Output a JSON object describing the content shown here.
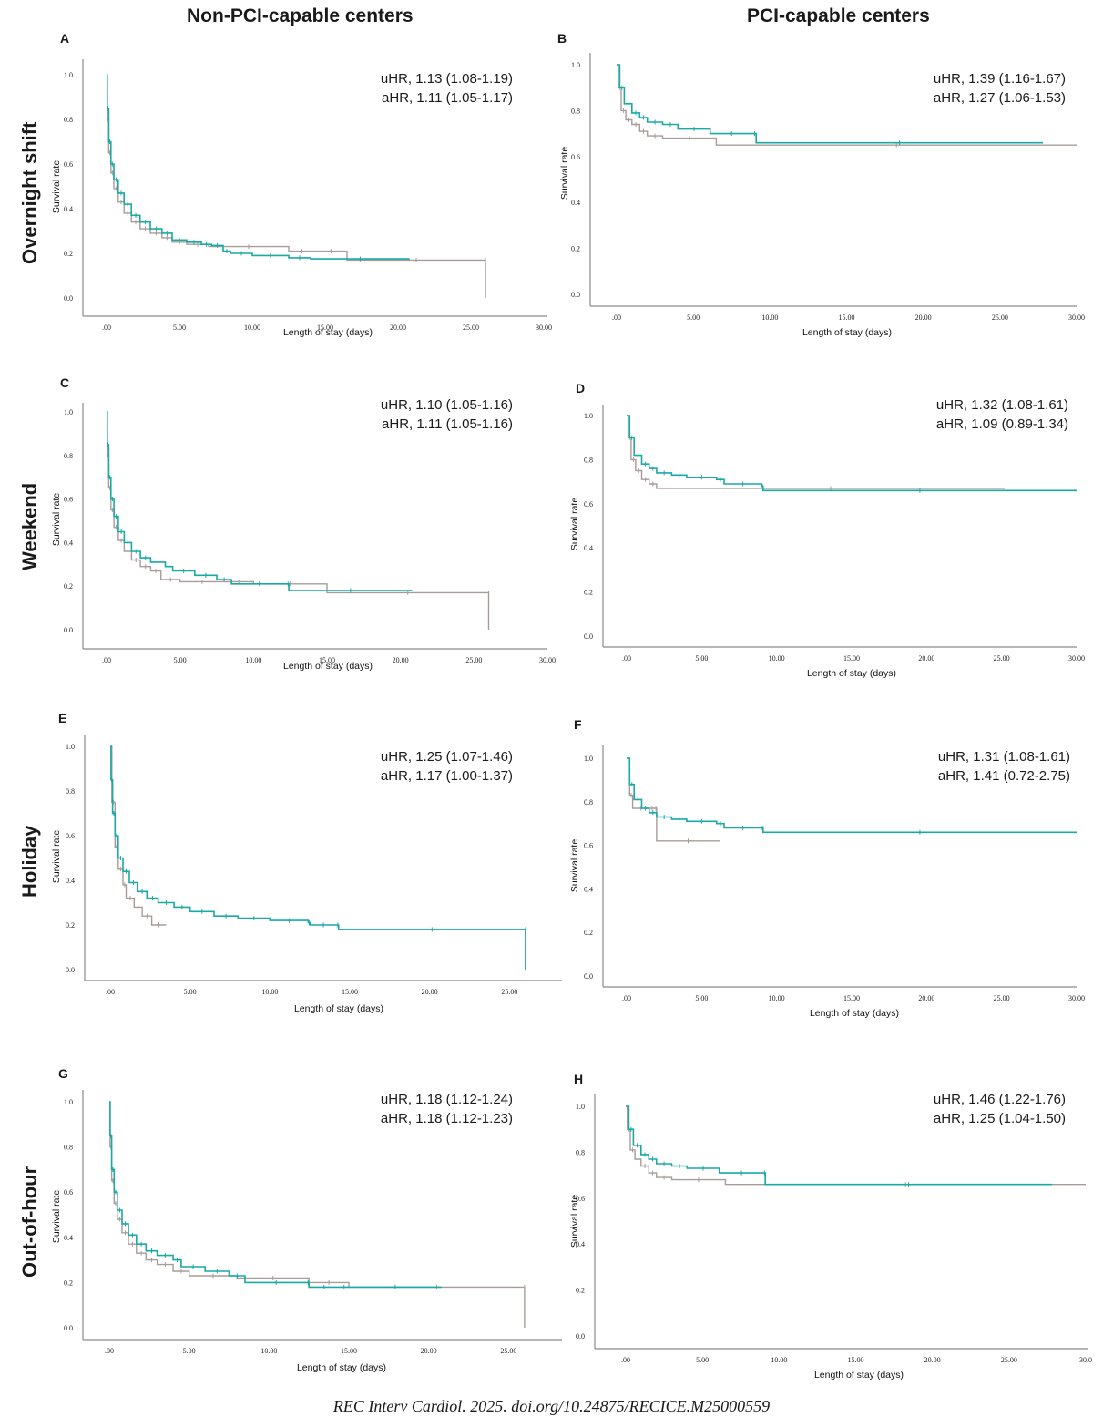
{
  "column_titles": [
    "Non-PCI-capable centers",
    "PCI-capable centers"
  ],
  "row_titles": [
    "Overnight shift",
    "Weekend",
    "Holiday",
    "Out-of-hour"
  ],
  "citation": "REC Interv Cardiol. 2025. doi.org/10.24875/RECICE.M25000559",
  "colors": {
    "series_exposed": "#1aa9a5",
    "series_reference": "#a89c9a",
    "axis": "#8a8a8a"
  },
  "chart_data": [
    {
      "panel": "A",
      "type": "line",
      "subtype": "kaplan-meier-step",
      "row": "Overnight shift",
      "column": "Non-PCI-capable centers",
      "xlabel": "Length of stay (days)",
      "ylabel": "Survival rate",
      "xlim": [
        0,
        30
      ],
      "ylim": [
        0,
        1
      ],
      "xticks": [
        ".00",
        "5.00",
        "10.00",
        "15.00",
        "20.00",
        "25.00",
        "30.00"
      ],
      "yticks": [
        "0.0",
        "0.2",
        "0.4",
        "0.6",
        "0.8",
        "1.0"
      ],
      "annotations": [
        "uHR, 1.13 (1.08-1.19)",
        "aHR, 1.11 (1.05-1.17)"
      ],
      "series": [
        {
          "name": "teal",
          "color": "#1aa9a5",
          "x": [
            0,
            0.05,
            0.15,
            0.3,
            0.5,
            0.8,
            1.2,
            1.7,
            2.3,
            3,
            3.8,
            4.5,
            5.5,
            6.5,
            7.2,
            8,
            8.5,
            10,
            12.5,
            14,
            20.8
          ],
          "y": [
            1.0,
            0.85,
            0.7,
            0.6,
            0.53,
            0.47,
            0.42,
            0.37,
            0.34,
            0.31,
            0.29,
            0.26,
            0.25,
            0.24,
            0.235,
            0.21,
            0.2,
            0.19,
            0.18,
            0.175,
            0.175
          ]
        },
        {
          "name": "gray",
          "color": "#a89c9a",
          "x": [
            0,
            0.05,
            0.15,
            0.3,
            0.5,
            0.8,
            1.2,
            1.7,
            2.3,
            3,
            3.8,
            4.5,
            5.5,
            7,
            12.5,
            14.3,
            16.5,
            26,
            26
          ],
          "y": [
            1.0,
            0.8,
            0.65,
            0.56,
            0.49,
            0.43,
            0.38,
            0.34,
            0.31,
            0.29,
            0.27,
            0.25,
            0.24,
            0.23,
            0.21,
            0.21,
            0.17,
            0.17,
            0.0
          ]
        }
      ]
    },
    {
      "panel": "B",
      "type": "line",
      "subtype": "kaplan-meier-step",
      "row": "Overnight shift",
      "column": "PCI-capable centers",
      "xlabel": "Length of stay (days)",
      "ylabel": "Survival rate",
      "xlim": [
        0,
        30
      ],
      "ylim": [
        0,
        1
      ],
      "xticks": [
        ".00",
        "5.00",
        "10.00",
        "15.00",
        "20.00",
        "25.00",
        "30.00"
      ],
      "yticks": [
        "0.0",
        "0.2",
        "0.4",
        "0.6",
        "0.8",
        "1.0"
      ],
      "annotations": [
        "uHR, 1.39 (1.16-1.67)",
        "aHR, 1.27 (1.06-1.53)"
      ],
      "series": [
        {
          "name": "teal",
          "color": "#1aa9a5",
          "x": [
            0,
            0.2,
            0.5,
            1,
            1.5,
            2,
            3,
            4,
            6.1,
            8.9,
            9.1,
            27.8
          ],
          "y": [
            1.0,
            0.9,
            0.83,
            0.79,
            0.77,
            0.75,
            0.74,
            0.72,
            0.7,
            0.7,
            0.66,
            0.66
          ]
        },
        {
          "name": "gray",
          "color": "#a89c9a",
          "x": [
            0,
            0.1,
            0.3,
            0.6,
            1,
            1.5,
            2,
            3,
            6.5,
            30
          ],
          "y": [
            1.0,
            0.9,
            0.8,
            0.76,
            0.74,
            0.71,
            0.69,
            0.68,
            0.65,
            0.65
          ]
        }
      ]
    },
    {
      "panel": "C",
      "type": "line",
      "subtype": "kaplan-meier-step",
      "row": "Weekend",
      "column": "Non-PCI-capable centers",
      "xlabel": "Length of stay (days)",
      "ylabel": "Survival rate",
      "xlim": [
        0,
        30
      ],
      "ylim": [
        0,
        1
      ],
      "xticks": [
        ".00",
        "5.00",
        "10.00",
        "15.00",
        "20.00",
        "25.00",
        "30.00"
      ],
      "yticks": [
        "0.0",
        "0.2",
        "0.4",
        "0.6",
        "0.8",
        "1.0"
      ],
      "annotations": [
        "uHR, 1.10 (1.05-1.16)",
        "aHR, 1.11 (1.05-1.16)"
      ],
      "series": [
        {
          "name": "teal",
          "color": "#1aa9a5",
          "x": [
            0,
            0.05,
            0.15,
            0.3,
            0.5,
            0.8,
            1.2,
            1.7,
            2.3,
            3,
            4,
            4.5,
            6,
            7.5,
            8.5,
            12.3,
            12.4,
            20.8
          ],
          "y": [
            1.0,
            0.85,
            0.7,
            0.6,
            0.52,
            0.45,
            0.4,
            0.36,
            0.33,
            0.31,
            0.29,
            0.27,
            0.25,
            0.23,
            0.21,
            0.21,
            0.18,
            0.18
          ]
        },
        {
          "name": "gray",
          "color": "#a89c9a",
          "x": [
            0,
            0.05,
            0.15,
            0.3,
            0.5,
            0.8,
            1.2,
            1.7,
            2.3,
            3,
            3.7,
            5,
            8,
            10,
            15,
            26,
            26
          ],
          "y": [
            1.0,
            0.8,
            0.65,
            0.55,
            0.47,
            0.41,
            0.36,
            0.32,
            0.29,
            0.27,
            0.23,
            0.22,
            0.22,
            0.21,
            0.17,
            0.17,
            0.0
          ]
        }
      ]
    },
    {
      "panel": "D",
      "type": "line",
      "subtype": "kaplan-meier-step",
      "row": "Weekend",
      "column": "PCI-capable centers",
      "xlabel": "Length of stay (days)",
      "ylabel": "Survival rate",
      "xlim": [
        0,
        30
      ],
      "ylim": [
        0,
        1
      ],
      "xticks": [
        ".00",
        "5.00",
        "10.00",
        "15.00",
        "20.00",
        "25.00",
        "30.00"
      ],
      "yticks": [
        "0.0",
        "0.2",
        "0.4",
        "0.6",
        "0.8",
        "1.0"
      ],
      "annotations": [
        "uHR, 1.32 (1.08-1.61)",
        "aHR, 1.09 (0.89-1.34)"
      ],
      "series": [
        {
          "name": "teal",
          "color": "#1aa9a5",
          "x": [
            0,
            0.2,
            0.5,
            1,
            1.5,
            2,
            3,
            4,
            6,
            6.5,
            9,
            9.1,
            30
          ],
          "y": [
            1.0,
            0.9,
            0.82,
            0.78,
            0.76,
            0.74,
            0.73,
            0.72,
            0.71,
            0.69,
            0.68,
            0.66,
            0.66
          ]
        },
        {
          "name": "gray",
          "color": "#a89c9a",
          "x": [
            0,
            0.1,
            0.3,
            0.6,
            1,
            1.5,
            2,
            25.2
          ],
          "y": [
            1.0,
            0.9,
            0.8,
            0.75,
            0.71,
            0.69,
            0.67,
            0.67
          ]
        }
      ]
    },
    {
      "panel": "E",
      "type": "line",
      "subtype": "kaplan-meier-step",
      "row": "Holiday",
      "column": "Non-PCI-capable centers",
      "xlabel": "Length of stay (days)",
      "ylabel": "Survival rate",
      "xlim": [
        0,
        30
      ],
      "ylim": [
        0,
        1
      ],
      "xticks": [
        ".00",
        "5.00",
        "10.00",
        "15.00",
        "20.00",
        "25.00"
      ],
      "yticks": [
        "0.0",
        "0.2",
        "0.4",
        "0.6",
        "0.8",
        "1.0"
      ],
      "annotations": [
        "uHR, 1.25 (1.07-1.46)",
        "aHR, 1.17 (1.00-1.37)"
      ],
      "series": [
        {
          "name": "teal",
          "color": "#1aa9a5",
          "x": [
            0,
            0.05,
            0.15,
            0.3,
            0.5,
            0.8,
            1.2,
            1.7,
            2.3,
            3,
            4,
            5,
            6.5,
            8,
            10,
            12.4,
            12.5,
            14.2,
            14.3,
            26,
            26
          ],
          "y": [
            1.0,
            0.85,
            0.7,
            0.6,
            0.5,
            0.44,
            0.39,
            0.35,
            0.32,
            0.3,
            0.28,
            0.26,
            0.24,
            0.23,
            0.22,
            0.21,
            0.2,
            0.2,
            0.18,
            0.18,
            0.0
          ]
        },
        {
          "name": "gray",
          "color": "#a89c9a",
          "x": [
            0,
            0.1,
            0.3,
            0.5,
            0.8,
            1,
            1.5,
            2,
            2.6,
            3.5
          ],
          "y": [
            1.0,
            0.75,
            0.55,
            0.45,
            0.38,
            0.32,
            0.28,
            0.24,
            0.2,
            0.2
          ]
        }
      ]
    },
    {
      "panel": "F",
      "type": "line",
      "subtype": "kaplan-meier-step",
      "row": "Holiday",
      "column": "PCI-capable centers",
      "xlabel": "Length of stay (days)",
      "ylabel": "Survival rate",
      "xlim": [
        0,
        30
      ],
      "ylim": [
        0,
        1
      ],
      "xticks": [
        ".00",
        "5.00",
        "10.00",
        "15.00",
        "20.00",
        "25.00",
        "30.00"
      ],
      "yticks": [
        "0.0",
        "0.2",
        "0.4",
        "0.6",
        "0.8",
        "1.0"
      ],
      "annotations": [
        "uHR, 1.31 (1.08-1.61)",
        "aHR, 1.41 (0.72-2.75)"
      ],
      "series": [
        {
          "name": "teal",
          "color": "#1aa9a5",
          "x": [
            0,
            0.2,
            0.5,
            1,
            1.5,
            2,
            3,
            4,
            6,
            6.5,
            9,
            9.1,
            30
          ],
          "y": [
            1.0,
            0.88,
            0.81,
            0.77,
            0.75,
            0.73,
            0.72,
            0.71,
            0.7,
            0.68,
            0.68,
            0.66,
            0.66
          ]
        },
        {
          "name": "gray",
          "color": "#a89c9a",
          "x": [
            0,
            0.2,
            0.4,
            1.5,
            1.9,
            2.0,
            6.2
          ],
          "y": [
            1.0,
            0.83,
            0.77,
            0.77,
            0.77,
            0.62,
            0.62
          ]
        }
      ]
    },
    {
      "panel": "G",
      "type": "line",
      "subtype": "kaplan-meier-step",
      "row": "Out-of-hour",
      "column": "Non-PCI-capable centers",
      "xlabel": "Length of stay (days)",
      "ylabel": "Survival rate",
      "xlim": [
        0,
        30
      ],
      "ylim": [
        0,
        1
      ],
      "xticks": [
        ".00",
        "5.00",
        "10.00",
        "15.00",
        "20.00",
        "25.00"
      ],
      "yticks": [
        "0.0",
        "0.2",
        "0.4",
        "0.6",
        "0.8",
        "1.0"
      ],
      "annotations": [
        "uHR, 1.18 (1.12-1.24)",
        "aHR, 1.18 (1.12-1.23)"
      ],
      "series": [
        {
          "name": "teal",
          "color": "#1aa9a5",
          "x": [
            0,
            0.05,
            0.15,
            0.3,
            0.5,
            0.8,
            1.2,
            1.7,
            2.3,
            3,
            4,
            4.5,
            6,
            7.5,
            8.5,
            12.4,
            12.5,
            14.4,
            15,
            20.8
          ],
          "y": [
            1.0,
            0.85,
            0.7,
            0.6,
            0.52,
            0.46,
            0.41,
            0.37,
            0.34,
            0.32,
            0.3,
            0.27,
            0.25,
            0.23,
            0.2,
            0.2,
            0.18,
            0.18,
            0.18,
            0.18
          ]
        },
        {
          "name": "gray",
          "color": "#a89c9a",
          "x": [
            0,
            0.05,
            0.15,
            0.3,
            0.5,
            0.8,
            1.2,
            1.7,
            2.3,
            3,
            4,
            5,
            8,
            12.5,
            15,
            26,
            26
          ],
          "y": [
            1.0,
            0.8,
            0.65,
            0.55,
            0.48,
            0.42,
            0.37,
            0.33,
            0.3,
            0.28,
            0.25,
            0.23,
            0.22,
            0.2,
            0.18,
            0.18,
            0.0
          ]
        }
      ]
    },
    {
      "panel": "H",
      "type": "line",
      "subtype": "kaplan-meier-step",
      "row": "Out-of-hour",
      "column": "PCI-capable centers",
      "xlabel": "Length of stay (days)",
      "ylabel": "Survival rate",
      "xlim": [
        0,
        30
      ],
      "ylim": [
        0,
        1
      ],
      "xticks": [
        ".00",
        "5.00",
        "10.00",
        "15.00",
        "20.00",
        "25.00",
        "30.0"
      ],
      "yticks": [
        "0.0",
        "0.2",
        "0.4",
        "0.6",
        "0.8",
        "1.0"
      ],
      "annotations": [
        "uHR, 1.46 (1.22-1.76)",
        "aHR, 1.25 (1.04-1.50)"
      ],
      "series": [
        {
          "name": "teal",
          "color": "#1aa9a5",
          "x": [
            0,
            0.2,
            0.5,
            1,
            1.5,
            2,
            3,
            4,
            6.1,
            9,
            9.1,
            27.8
          ],
          "y": [
            1.0,
            0.9,
            0.83,
            0.79,
            0.77,
            0.75,
            0.74,
            0.73,
            0.71,
            0.71,
            0.66,
            0.66
          ]
        },
        {
          "name": "gray",
          "color": "#a89c9a",
          "x": [
            0,
            0.1,
            0.3,
            0.6,
            1,
            1.5,
            2,
            3,
            6.5,
            30
          ],
          "y": [
            1.0,
            0.9,
            0.81,
            0.77,
            0.74,
            0.71,
            0.69,
            0.68,
            0.66,
            0.66
          ]
        }
      ]
    }
  ]
}
